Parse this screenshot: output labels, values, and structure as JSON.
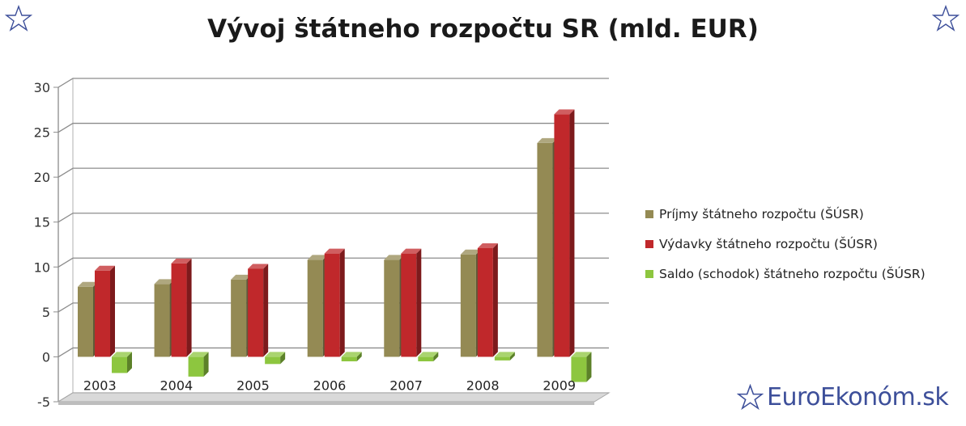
{
  "title": "Vývoj štátneho rozpočtu SR (mld. EUR)",
  "branding": {
    "text": "EuroEkonóm.sk",
    "icon": "star-outline-icon",
    "color": "#3d4f9a"
  },
  "decorations": {
    "icon": "star-outline-icon",
    "color": "#3d4f9a"
  },
  "chart_data": {
    "type": "bar",
    "style": "3d clustered column",
    "categories": [
      "2003",
      "2004",
      "2005",
      "2006",
      "2007",
      "2008",
      "2009"
    ],
    "series": [
      {
        "name": "Príjmy štátneho rozpočtu (ŠÚSR)",
        "color": "#948a54",
        "values": [
          7.8,
          8.1,
          8.6,
          10.8,
          10.8,
          11.4,
          23.8
        ]
      },
      {
        "name": "Výdavky štátneho rozpočtu (ŠÚSR)",
        "color": "#c0282b",
        "values": [
          9.6,
          10.4,
          9.8,
          11.5,
          11.5,
          12.1,
          27.0
        ]
      },
      {
        "name": "Saldo (schodok) štátneho rozpočtu (ŠÚSR)",
        "color": "#8dc63f",
        "values": [
          -1.8,
          -2.2,
          -0.8,
          -0.5,
          -0.5,
          -0.4,
          -2.8
        ]
      }
    ],
    "ylim": [
      -5,
      30
    ],
    "yticks": [
      -5,
      0,
      5,
      10,
      15,
      20,
      25,
      30
    ],
    "xlabel": "",
    "ylabel": "",
    "grid": true,
    "legend": "right"
  }
}
